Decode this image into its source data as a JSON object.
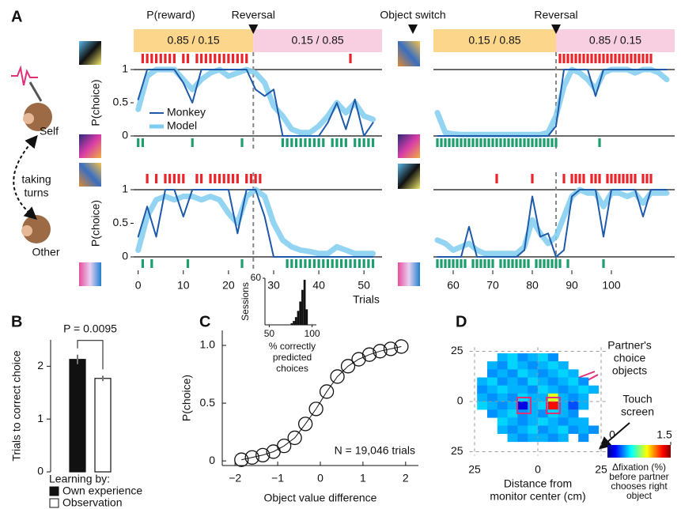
{
  "panels": [
    "A",
    "B",
    "C",
    "D"
  ],
  "header": {
    "p_reward": "P(reward)",
    "object_switch": "Object switch"
  },
  "agents": {
    "self": "Self",
    "turns": [
      "taking",
      "turns"
    ],
    "other": "Other"
  },
  "chart_data": [
    {
      "type": "line",
      "ylabel": "P(choice)",
      "xlim": [
        -1,
        54
      ],
      "ylim": [
        0,
        1
      ],
      "yticks": [
        0,
        0.5,
        1
      ],
      "reversal": 25.5,
      "reversal_label": "Reversal",
      "legend": "lower left",
      "blocks": [
        {
          "label": "0.85 / 0.15",
          "color": "#fcd68a"
        },
        {
          "label": "0.15 / 0.85",
          "color": "#f8cfe1"
        }
      ],
      "series": [
        {
          "name": "Monkey",
          "color": "#1e5aa8",
          "x": [
            0,
            2,
            4,
            6,
            8,
            10,
            12,
            14,
            16,
            18,
            20,
            22,
            24,
            26,
            28,
            30,
            32,
            34,
            36,
            38,
            40,
            42,
            44,
            46,
            48,
            50,
            52
          ],
          "values": [
            0.55,
            1,
            1,
            1,
            1,
            0.8,
            0.5,
            1,
            1,
            1,
            1,
            1,
            1,
            0.7,
            0.6,
            0.7,
            0,
            0,
            0,
            0,
            0,
            0.2,
            0.5,
            0.1,
            0.55,
            0,
            0.2
          ]
        },
        {
          "name": "Model",
          "color": "#7fcdf0",
          "x": [
            0,
            2,
            4,
            6,
            8,
            10,
            12,
            14,
            16,
            18,
            20,
            22,
            24,
            26,
            28,
            30,
            32,
            34,
            36,
            38,
            40,
            42,
            44,
            46,
            48,
            50,
            52
          ],
          "values": [
            0.4,
            0.9,
            1,
            1,
            1,
            0.85,
            0.7,
            0.85,
            0.95,
            1,
            0.9,
            0.95,
            1,
            0.95,
            0.8,
            0.45,
            0.3,
            0.1,
            0.05,
            0.05,
            0.15,
            0.3,
            0.5,
            0.35,
            0.5,
            0.3,
            0.25
          ]
        }
      ],
      "rewards": {
        "color": "#e8262c",
        "x": [
          1,
          2,
          3,
          4,
          5,
          6,
          7,
          8,
          10,
          11,
          13,
          14,
          15,
          16,
          17,
          18,
          19,
          20,
          21,
          22,
          23,
          24,
          47
        ]
      },
      "choices": {
        "color": "#1e9e6e",
        "x": [
          0,
          1,
          12,
          23,
          32,
          33,
          34,
          35,
          36,
          37,
          38,
          39,
          40,
          41,
          43,
          44,
          45,
          46,
          48,
          49,
          50,
          51,
          52
        ]
      }
    },
    {
      "type": "line",
      "xlim": [
        55,
        116
      ],
      "ylim": [
        0,
        1
      ],
      "reversal": 86,
      "reversal_label": "Reversal",
      "blocks": [
        {
          "label": "0.15 / 0.85",
          "color": "#fcd68a"
        },
        {
          "label": "0.85 / 0.15",
          "color": "#f8cfe1"
        }
      ],
      "series": [
        {
          "color": "#1e5aa8",
          "x": [
            56,
            58,
            60,
            62,
            64,
            66,
            68,
            70,
            72,
            74,
            76,
            78,
            80,
            82,
            84,
            86,
            88,
            90,
            92,
            94,
            96,
            98,
            100,
            102,
            104,
            106,
            108,
            110,
            112,
            114
          ],
          "values": [
            0,
            0,
            0,
            0,
            0,
            0,
            0,
            0,
            0,
            0,
            0,
            0,
            0,
            0,
            0,
            0.15,
            1,
            1,
            1,
            1,
            0.6,
            1,
            1,
            1,
            1,
            1,
            1,
            1,
            1,
            1
          ]
        },
        {
          "color": "#7fcdf0",
          "x": [
            56,
            58,
            60,
            62,
            64,
            66,
            68,
            70,
            72,
            74,
            76,
            78,
            80,
            82,
            84,
            86,
            88,
            90,
            92,
            94,
            96,
            98,
            100,
            102,
            104,
            106,
            108,
            110,
            112,
            114
          ],
          "values": [
            0.35,
            0.05,
            0.03,
            0.02,
            0.02,
            0.02,
            0.02,
            0.02,
            0.02,
            0.02,
            0.02,
            0.02,
            0.02,
            0.02,
            0.05,
            0.3,
            0.75,
            1,
            0.95,
            0.85,
            0.7,
            0.95,
            1,
            1,
            1,
            0.95,
            1,
            1,
            0.95,
            0.85
          ]
        }
      ],
      "rewards": {
        "color": "#e8262c",
        "x": [
          87,
          88,
          89,
          90,
          91,
          92,
          93,
          94,
          95,
          96,
          97,
          98,
          99,
          100,
          101,
          102,
          103,
          104,
          105,
          106,
          107,
          108,
          109,
          110
        ]
      },
      "choices": {
        "color": "#1e9e6e",
        "x": [
          56,
          57,
          58,
          59,
          60,
          61,
          62,
          63,
          64,
          65,
          66,
          67,
          68,
          69,
          70,
          71,
          72,
          73,
          74,
          75,
          76,
          77,
          78,
          79,
          80,
          81,
          82,
          83,
          84,
          85,
          86,
          97
        ]
      }
    },
    {
      "type": "line",
      "ylabel": "P(choice)",
      "xlabel": "Trials",
      "xlim": [
        -1,
        54
      ],
      "ylim": [
        0,
        1
      ],
      "yticks": [
        0,
        0.5,
        1
      ],
      "xticks": [
        0,
        10,
        20,
        30,
        40,
        50
      ],
      "reversal": 25.5,
      "series": [
        {
          "color": "#1e5aa8",
          "x": [
            0,
            2,
            4,
            6,
            8,
            10,
            12,
            14,
            16,
            18,
            20,
            22,
            24,
            26,
            28,
            30,
            32,
            34,
            36,
            38,
            40,
            42,
            44,
            46,
            48,
            50,
            52
          ],
          "values": [
            0.3,
            0.75,
            0.3,
            1,
            1,
            0.6,
            1,
            1,
            1,
            1,
            1,
            0.35,
            1,
            1,
            0.6,
            0,
            0,
            0,
            0,
            0,
            0,
            0,
            0,
            0,
            0,
            0,
            0
          ]
        },
        {
          "color": "#7fcdf0",
          "x": [
            0,
            2,
            4,
            6,
            8,
            10,
            12,
            14,
            16,
            18,
            20,
            22,
            24,
            26,
            28,
            30,
            32,
            34,
            36,
            38,
            40,
            42,
            44,
            46,
            48,
            50,
            52
          ],
          "values": [
            0.1,
            0.6,
            0.85,
            0.9,
            0.85,
            0.9,
            0.9,
            0.85,
            0.9,
            0.85,
            0.65,
            0.5,
            0.9,
            1,
            0.9,
            0.5,
            0.25,
            0.15,
            0.1,
            0.08,
            0.05,
            0.05,
            0.15,
            0.1,
            0.05,
            0.05,
            0.05
          ]
        }
      ],
      "rewards": {
        "color": "#e8262c",
        "x": [
          2,
          4,
          6,
          7,
          8,
          9,
          10,
          13,
          14,
          16,
          17,
          18,
          19,
          20,
          21,
          22,
          24,
          25,
          26,
          27
        ]
      },
      "choices": {
        "color": "#1e9e6e",
        "x": [
          1,
          3,
          11,
          23,
          33,
          34,
          35,
          36,
          37,
          38,
          39,
          40,
          41,
          42,
          43,
          44,
          45,
          46,
          47,
          48,
          49,
          50,
          51,
          52
        ]
      }
    },
    {
      "type": "line",
      "xlim": [
        55,
        116
      ],
      "ylim": [
        0,
        1
      ],
      "xticks": [
        60,
        70,
        80,
        90,
        100
      ],
      "reversal": 86,
      "series": [
        {
          "color": "#1e5aa8",
          "x": [
            56,
            58,
            60,
            62,
            64,
            66,
            68,
            70,
            72,
            74,
            76,
            78,
            80,
            82,
            84,
            86,
            88,
            90,
            92,
            94,
            96,
            98,
            100,
            102,
            104,
            106,
            108,
            110,
            112,
            114
          ],
          "values": [
            0,
            0,
            0,
            0,
            0.45,
            0,
            0,
            0,
            0,
            0,
            0,
            0.1,
            0.9,
            0.3,
            0.35,
            0,
            0.1,
            0.9,
            1,
            1,
            1,
            0.3,
            1,
            1,
            1,
            1,
            0.6,
            1,
            1,
            1
          ]
        },
        {
          "color": "#7fcdf0",
          "x": [
            56,
            58,
            60,
            62,
            64,
            66,
            68,
            70,
            72,
            74,
            76,
            78,
            80,
            82,
            84,
            86,
            88,
            90,
            92,
            94,
            96,
            98,
            100,
            102,
            104,
            106,
            108,
            110,
            112,
            114
          ],
          "values": [
            0.25,
            0.2,
            0.1,
            0.15,
            0.2,
            0.1,
            0.05,
            0.05,
            0.05,
            0.05,
            0.05,
            0.15,
            0.55,
            0.35,
            0.2,
            0.3,
            0.6,
            0.9,
            1,
            0.95,
            0.95,
            0.75,
            0.95,
            0.95,
            0.9,
            0.95,
            0.8,
            0.95,
            0.95,
            0.95
          ]
        }
      ],
      "rewards": {
        "color": "#e8262c",
        "x": [
          71,
          80,
          88,
          90,
          91,
          92,
          93,
          95,
          96,
          97,
          99,
          100,
          101,
          102,
          103,
          104,
          105,
          106,
          108,
          109,
          110
        ]
      },
      "choices": {
        "color": "#1e9e6e",
        "x": [
          56,
          57,
          58,
          59,
          60,
          61,
          62,
          63,
          65,
          66,
          67,
          68,
          69,
          70,
          72,
          73,
          74,
          75,
          76,
          77,
          78,
          79,
          81,
          82,
          83,
          84,
          85,
          86,
          87,
          89,
          98
        ]
      }
    },
    {
      "type": "bar",
      "ylabel": "Trials to correct choice",
      "categories": [
        "Own experience",
        "Observation"
      ],
      "values": [
        2.13,
        1.77
      ],
      "errors": [
        0.09,
        0.05
      ],
      "colors": [
        "#111111",
        "#ffffff"
      ],
      "ylim": [
        0,
        2.5
      ],
      "yticks": [
        0,
        1,
        2
      ],
      "legend_title": "Learning by:",
      "p_value": "P = 0.0095"
    },
    {
      "type": "scatter",
      "xlabel": "Object value difference",
      "ylabel": "P(choice)",
      "annotation": "N = 19,046 trials",
      "x": [
        -1.85,
        -1.6,
        -1.35,
        -1.1,
        -0.85,
        -0.6,
        -0.35,
        -0.1,
        0.15,
        0.4,
        0.65,
        0.9,
        1.15,
        1.4,
        1.65,
        1.9
      ],
      "values": [
        0.01,
        0.03,
        0.05,
        0.08,
        0.13,
        0.2,
        0.32,
        0.45,
        0.6,
        0.73,
        0.82,
        0.88,
        0.92,
        0.95,
        0.97,
        0.99
      ],
      "xlim": [
        -2.3,
        2.3
      ],
      "ylim": [
        -0.04,
        1.13
      ],
      "xticks": [
        {
          "value": -2,
          "label": "−2"
        },
        {
          "value": -1,
          "label": "−1"
        },
        0,
        1,
        2
      ],
      "yticks": [
        0,
        0.5,
        {
          "value": 1,
          "label": "1.0"
        }
      ]
    },
    {
      "type": "histogram",
      "ylabel": "Sessions",
      "xlabel": [
        "% correctly",
        "predicted",
        "choices"
      ],
      "bins": [
        75,
        77.5,
        80,
        82.5,
        85,
        87.5,
        90,
        92.5,
        95
      ],
      "values": [
        2,
        5,
        10,
        18,
        30,
        45,
        58,
        20
      ],
      "color": "#111111",
      "xlim": [
        45,
        105
      ],
      "ylim": [
        0,
        60
      ],
      "xticks": [
        50,
        100
      ],
      "yticks": [
        60
      ]
    },
    {
      "type": "heatmap",
      "xlabel": [
        "Distance from",
        "monitor center (cm)"
      ],
      "xlim": [
        -27,
        27
      ],
      "ylim": [
        -27,
        27
      ],
      "grid": true,
      "xticks": [
        {
          "value": -25,
          "label": "25"
        },
        0,
        25
      ],
      "yticks": [
        25,
        0,
        {
          "value": -25,
          "label": "25"
        }
      ],
      "cell_x": [
        -22,
        -18,
        -14,
        -10,
        -6,
        -2,
        2,
        6,
        10,
        14,
        18,
        22
      ],
      "cell_y": [
        22,
        18,
        14,
        10,
        6,
        2,
        -2,
        -6,
        -10,
        -14,
        -18
      ],
      "values": [
        [
          null,
          null,
          0.45,
          0.5,
          0.4,
          0.45,
          0.5,
          0.4,
          null,
          null,
          null,
          null
        ],
        [
          null,
          0.45,
          0.4,
          0.5,
          0.45,
          0.4,
          0.45,
          0.5,
          0.45,
          null,
          null,
          null
        ],
        [
          null,
          0.4,
          0.45,
          0.4,
          0.5,
          0.45,
          0.4,
          0.45,
          0.5,
          0.45,
          null,
          null
        ],
        [
          0.45,
          0.5,
          0.4,
          0.45,
          0.4,
          0.5,
          0.45,
          0.4,
          0.45,
          0.5,
          0.4,
          null
        ],
        [
          0.4,
          0.45,
          0.5,
          0.45,
          0.45,
          0.4,
          0.5,
          0.45,
          0.4,
          0.45,
          0.5,
          0.45
        ],
        [
          0.45,
          0.4,
          0.45,
          0.4,
          0.5,
          0.45,
          0.45,
          0.9,
          0.45,
          0.4,
          0.45,
          null
        ],
        [
          0.5,
          0.45,
          0.4,
          0.45,
          0.15,
          0.45,
          0.5,
          1.3,
          0.45,
          0.3,
          0.45,
          null
        ],
        [
          null,
          0.4,
          0.45,
          0.5,
          0.4,
          0.45,
          0.4,
          0.5,
          0.45,
          0.4,
          null,
          null
        ],
        [
          null,
          null,
          0.5,
          0.45,
          0.4,
          0.45,
          0.5,
          0.45,
          0.4,
          0.45,
          0.45,
          null
        ],
        [
          null,
          null,
          0.45,
          0.4,
          0.45,
          0.5,
          0.4,
          0.45,
          0.5,
          0.4,
          0.45,
          0.4
        ],
        [
          null,
          null,
          null,
          0.45,
          0.4,
          0.45,
          0.45,
          0.4,
          0.45,
          null,
          0.4,
          null
        ]
      ],
      "zlim": [
        0,
        1.5
      ],
      "zticks": [
        0,
        1.5
      ],
      "colorbar_label": [
        "Δfixation (%)",
        "before partner",
        "chooses right",
        "object"
      ],
      "annotation": [
        "Partner's",
        "choice",
        "objects"
      ],
      "touch_label": [
        "Touch",
        "screen"
      ]
    }
  ]
}
